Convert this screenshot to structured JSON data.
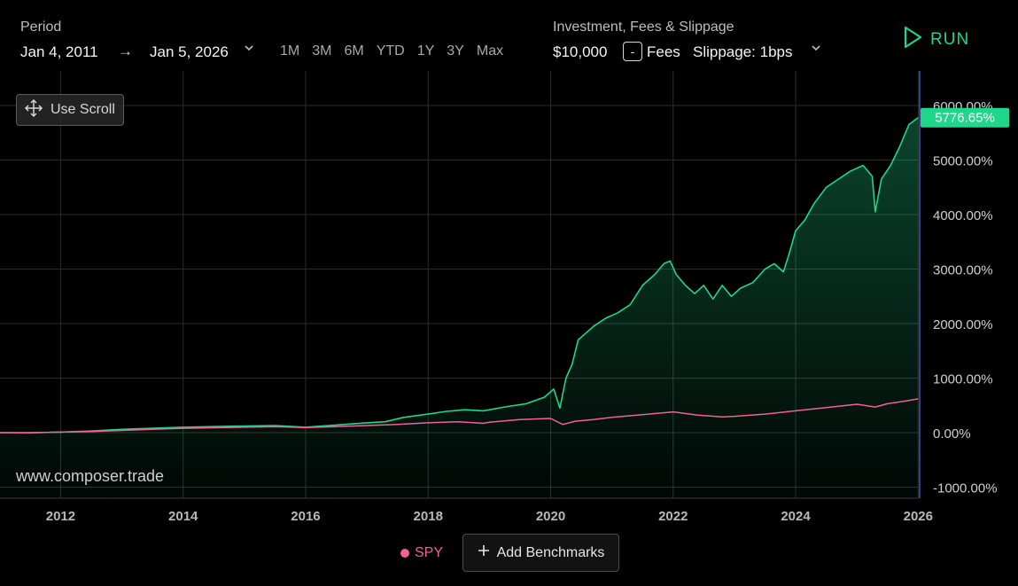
{
  "period": {
    "label": "Period",
    "start_date": "Jan 4, 2011",
    "arrow": "→",
    "end_date": "Jan 5, 2026",
    "ranges": [
      "1M",
      "3M",
      "6M",
      "YTD",
      "1Y",
      "3Y",
      "Max"
    ]
  },
  "investment": {
    "label": "Investment, Fees & Slippage",
    "amount": "$10,000",
    "fees_toggle": "-",
    "fees_label": "Fees",
    "slippage": "Slippage: 1bps"
  },
  "run_label": "RUN",
  "use_scroll_label": "Use Scroll",
  "watermark": "www.composer.trade",
  "colors": {
    "strategy": "#1fd68a",
    "spy": "#f0609c",
    "grid": "#2c2c2c",
    "current_badge": "#1fd68a"
  },
  "chart_data": {
    "type": "area",
    "xlabel": "",
    "ylabel": "",
    "xlim": [
      2011.01,
      2026.01
    ],
    "ylim": [
      -1000,
      6700
    ],
    "x_ticks": [
      "2012",
      "2014",
      "2016",
      "2018",
      "2020",
      "2022",
      "2024",
      "2026"
    ],
    "y_ticks": [
      "6000.00%",
      "5000.00%",
      "4000.00%",
      "3000.00%",
      "2000.00%",
      "1000.00%",
      "0.00%",
      "-1000.00%"
    ],
    "current_value_label": "5776.65%",
    "series": [
      {
        "name": "",
        "x": [
          2011.0,
          2011.5,
          2012.0,
          2012.5,
          2013.0,
          2013.5,
          2014.0,
          2014.5,
          2015.0,
          2015.5,
          2016.0,
          2016.5,
          2017.0,
          2017.3,
          2017.6,
          2018.0,
          2018.3,
          2018.6,
          2018.9,
          2019.0,
          2019.3,
          2019.6,
          2019.9,
          2020.05,
          2020.15,
          2020.25,
          2020.35,
          2020.45,
          2020.55,
          2020.7,
          2020.9,
          2021.1,
          2021.3,
          2021.5,
          2021.7,
          2021.85,
          2021.95,
          2022.05,
          2022.2,
          2022.35,
          2022.5,
          2022.65,
          2022.8,
          2022.95,
          2023.1,
          2023.3,
          2023.5,
          2023.65,
          2023.8,
          2023.9,
          2024.0,
          2024.15,
          2024.3,
          2024.5,
          2024.7,
          2024.9,
          2025.1,
          2025.25,
          2025.3,
          2025.4,
          2025.55,
          2025.7,
          2025.85,
          2026.0
        ],
        "y": [
          0,
          0,
          10,
          30,
          60,
          80,
          100,
          110,
          120,
          130,
          100,
          140,
          180,
          200,
          280,
          340,
          390,
          420,
          400,
          420,
          480,
          530,
          650,
          800,
          450,
          1000,
          1250,
          1700,
          1800,
          1950,
          2100,
          2200,
          2350,
          2700,
          2900,
          3100,
          3150,
          2900,
          2700,
          2550,
          2700,
          2450,
          2700,
          2500,
          2650,
          2750,
          3000,
          3100,
          2950,
          3300,
          3700,
          3900,
          4200,
          4500,
          4650,
          4800,
          4900,
          4700,
          4050,
          4650,
          4900,
          5250,
          5650,
          5776.65
        ]
      },
      {
        "name": "SPY",
        "x": [
          2011.0,
          2011.5,
          2012.0,
          2012.5,
          2013.0,
          2013.5,
          2014.0,
          2014.5,
          2015.0,
          2015.5,
          2016.0,
          2016.5,
          2017.0,
          2017.5,
          2018.0,
          2018.5,
          2018.9,
          2019.0,
          2019.5,
          2020.0,
          2020.2,
          2020.4,
          2020.7,
          2021.0,
          2021.5,
          2022.0,
          2022.4,
          2022.8,
          2023.0,
          2023.5,
          2024.0,
          2024.5,
          2025.0,
          2025.3,
          2025.5,
          2025.8,
          2026.0
        ],
        "y": [
          0,
          -5,
          10,
          20,
          40,
          60,
          80,
          90,
          100,
          110,
          95,
          110,
          130,
          150,
          180,
          200,
          170,
          190,
          240,
          260,
          150,
          210,
          240,
          280,
          330,
          380,
          320,
          290,
          300,
          340,
          400,
          460,
          520,
          470,
          530,
          580,
          620
        ]
      }
    ]
  }
}
